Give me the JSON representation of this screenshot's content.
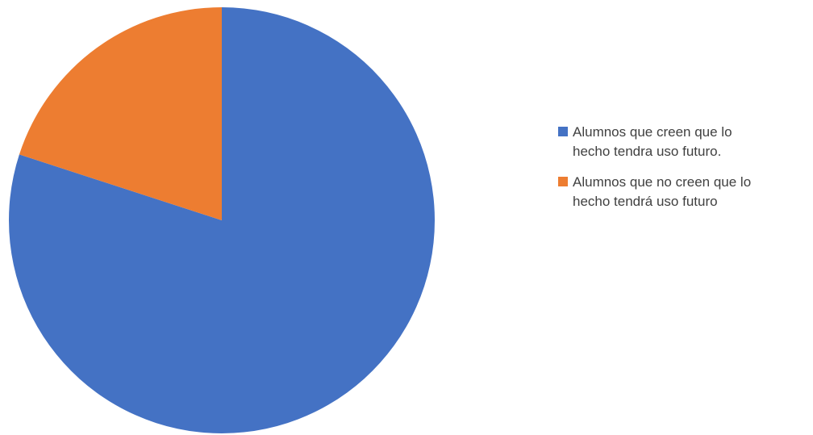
{
  "chart_data": {
    "type": "pie",
    "categories": [
      "Alumnos que creen que lo hecho tendra uso futuro.",
      "Alumnos que no creen que lo hecho tendrá uso futuro"
    ],
    "values": [
      80,
      20
    ],
    "colors": [
      "#4472c4",
      "#ed7d31"
    ],
    "legend": "right"
  }
}
